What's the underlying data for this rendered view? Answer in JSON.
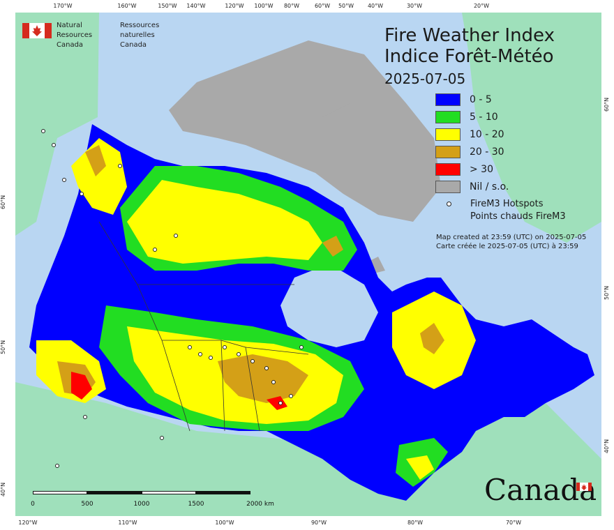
{
  "agency": {
    "name_en_line1": "Natural Resources",
    "name_en_line2": "Canada",
    "name_fr_line1": "Ressources naturelles",
    "name_fr_line2": "Canada"
  },
  "title": {
    "en": "Fire Weather Index",
    "fr": "Indice Forêt-Météo",
    "date": "2025-07-05"
  },
  "legend": [
    {
      "label": "0 - 5",
      "color": "#0000ff"
    },
    {
      "label": "5 - 10",
      "color": "#22dd22"
    },
    {
      "label": "10 - 20",
      "color": "#ffff00"
    },
    {
      "label": "20 - 30",
      "color": "#d4a017"
    },
    {
      "label": "> 30",
      "color": "#ff0000"
    },
    {
      "label": "Nil / s.o.",
      "color": "#a9a9a9"
    }
  ],
  "hotspots": {
    "label_en": "FireM3 Hotspots",
    "label_fr": "Points chauds FireM3"
  },
  "created": {
    "en": "Map created at 23:59 (UTC) on 2025-07-05",
    "fr": "Carte créée le 2025-07-05 (UTC) à 23:59"
  },
  "wordmark": "Canada",
  "scalebar": {
    "labels": [
      "0",
      "500",
      "1000",
      "1500",
      "2000  km"
    ]
  },
  "graticule": {
    "top": [
      "170°W",
      "160°W",
      "150°W",
      "140°W",
      "120°W",
      "100°W",
      "80°W",
      "60°W",
      "50°W",
      "40°W",
      "30°W",
      "20°W"
    ],
    "bottom": [
      "120°W",
      "110°W",
      "100°W",
      "90°W",
      "80°W",
      "70°W"
    ],
    "left": [
      "60°N",
      "50°N",
      "40°N"
    ],
    "right": [
      "60°N",
      "50°N",
      "40°N"
    ]
  },
  "colors": {
    "water": "#b9d6f2",
    "land_outside": "#9fe0bb",
    "nil": "#a9a9a9",
    "boundary": "#333333"
  }
}
